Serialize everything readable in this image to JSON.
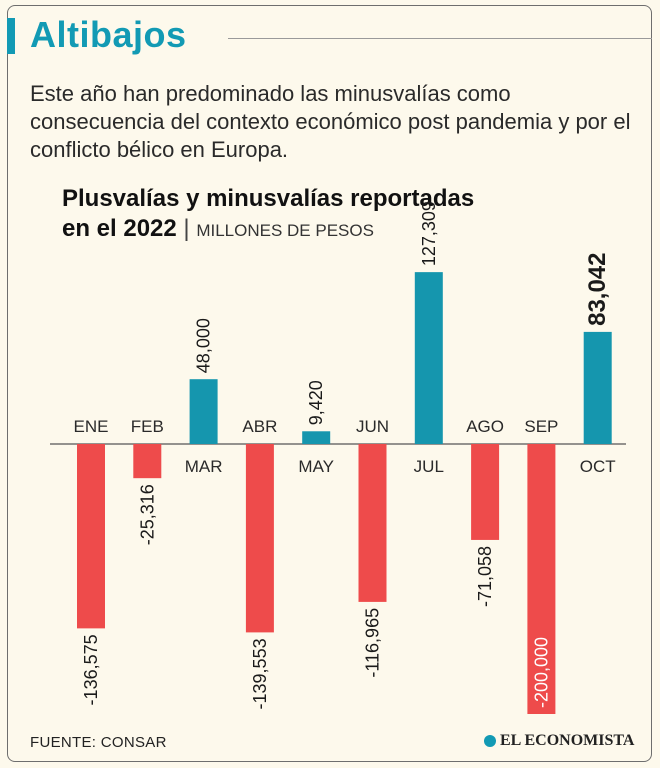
{
  "header": {
    "title": "Altibajos",
    "intro": "Este año han predominado las minusvalías como consecuencia del contexto económico post pandemia y por el conflicto bélico en Europa."
  },
  "colors": {
    "accent": "#129ab4",
    "positive": "#1596ae",
    "negative": "#ee4b4b",
    "background": "#fdf9ec"
  },
  "chart_data": {
    "type": "bar",
    "title_line1": "Plusvalías y minusvalías reportadas",
    "title_line2": "en el 2022",
    "unit": "MILLONES DE PESOS",
    "categories": [
      "ENE",
      "FEB",
      "MAR",
      "ABR",
      "MAY",
      "JUN",
      "JUL",
      "AGO",
      "SEP",
      "OCT"
    ],
    "values": [
      -136575,
      -25316,
      48000,
      -139553,
      9420,
      -116965,
      127309,
      -71058,
      -200000,
      83042
    ],
    "value_labels": [
      "-136,575",
      "-25,316",
      "48,000",
      "-139,553",
      "9,420",
      "-116,965",
      "127,309",
      "-71,058",
      "-200,000",
      "83,042"
    ],
    "highlight": "OCT",
    "ylim": [
      -200000,
      130000
    ],
    "grid": false,
    "legend": "none"
  },
  "footer": {
    "source": "FUENTE: CONSAR",
    "brand": "EL ECONOMISTA"
  }
}
